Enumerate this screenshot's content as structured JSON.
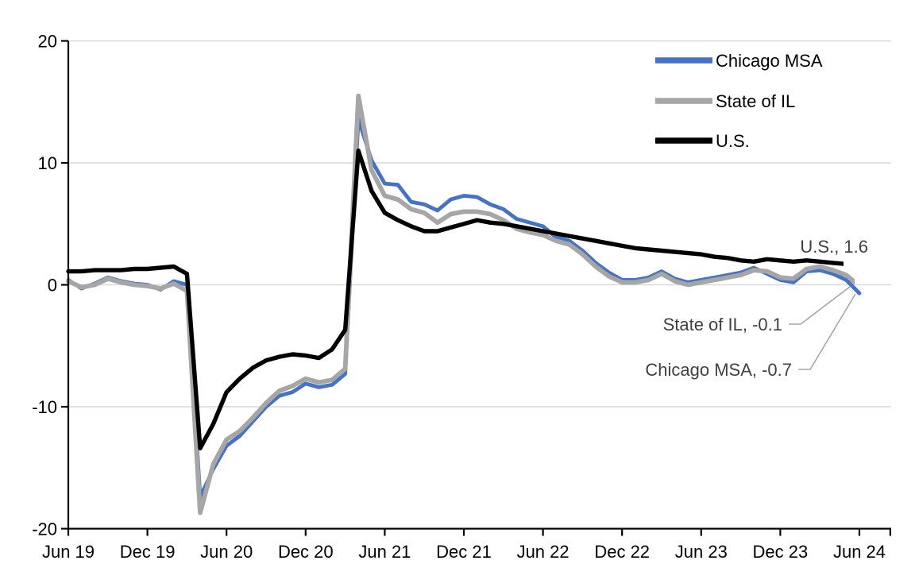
{
  "chart_data": {
    "type": "line",
    "title": "",
    "frequency": "monthly",
    "x_range": [
      "Jun 2019",
      "Jun 2024"
    ],
    "x_tick_labels": [
      "Jun 19",
      "Dec 19",
      "Jun 20",
      "Dec 20",
      "Jun 21",
      "Dec 21",
      "Jun 22",
      "Dec 22",
      "Jun 23",
      "Dec 23",
      "Jun 24"
    ],
    "y_ticks": [
      20,
      10,
      0,
      -10,
      -20
    ],
    "ylim": [
      -20,
      20
    ],
    "grid": "horizontal",
    "legend_position": "top-right",
    "series": [
      {
        "name": "Chicago MSA",
        "color": "#4472C4",
        "final_value": -0.7,
        "values": [
          0.4,
          -0.3,
          0.1,
          0.6,
          0.3,
          0.1,
          0.0,
          -0.4,
          0.3,
          0.0,
          -17.4,
          -15.1,
          -13.2,
          -12.4,
          -11.2,
          -10.0,
          -9.1,
          -8.8,
          -8.1,
          -8.4,
          -8.2,
          -7.3,
          13.6,
          10.2,
          8.3,
          8.2,
          6.8,
          6.6,
          6.1,
          7.0,
          7.3,
          7.2,
          6.6,
          6.2,
          5.4,
          5.1,
          4.8,
          3.9,
          3.6,
          2.8,
          1.8,
          1.0,
          0.4,
          0.4,
          0.6,
          1.1,
          0.5,
          0.2,
          0.4,
          0.6,
          0.8,
          1.0,
          1.4,
          0.9,
          0.4,
          0.2,
          1.1,
          1.2,
          0.9,
          0.4,
          -0.7
        ]
      },
      {
        "name": "State of IL",
        "color": "#A6A6A6",
        "final_value": -0.1,
        "values": [
          0.3,
          -0.2,
          0.0,
          0.5,
          0.2,
          0.0,
          -0.1,
          -0.3,
          0.1,
          -0.5,
          -18.7,
          -14.7,
          -12.7,
          -12.0,
          -10.9,
          -9.7,
          -8.7,
          -8.3,
          -7.7,
          -8.0,
          -7.8,
          -6.9,
          15.5,
          9.4,
          7.3,
          7.0,
          6.2,
          5.9,
          5.1,
          5.8,
          6.0,
          6.0,
          5.8,
          5.3,
          4.6,
          4.3,
          4.1,
          3.6,
          3.3,
          2.5,
          1.5,
          0.7,
          0.2,
          0.2,
          0.4,
          0.9,
          0.3,
          0.0,
          0.2,
          0.4,
          0.6,
          0.8,
          1.2,
          1.1,
          0.6,
          0.5,
          1.3,
          1.5,
          1.2,
          0.8,
          -0.1
        ]
      },
      {
        "name": "U.S.",
        "color": "#000000",
        "final_value": 1.6,
        "values": [
          1.1,
          1.1,
          1.2,
          1.2,
          1.2,
          1.3,
          1.3,
          1.4,
          1.5,
          0.9,
          -13.4,
          -11.4,
          -8.8,
          -7.7,
          -6.8,
          -6.2,
          -5.9,
          -5.7,
          -5.8,
          -6.0,
          -5.3,
          -3.7,
          11.0,
          7.7,
          5.9,
          5.3,
          4.8,
          4.4,
          4.4,
          4.7,
          5.0,
          5.3,
          5.1,
          5.0,
          4.8,
          4.6,
          4.4,
          4.2,
          4.0,
          3.8,
          3.6,
          3.4,
          3.2,
          3.0,
          2.9,
          2.8,
          2.7,
          2.6,
          2.5,
          2.3,
          2.2,
          2.0,
          1.9,
          2.1,
          2.0,
          1.9,
          2.0,
          1.9,
          1.8,
          1.7,
          1.6
        ]
      }
    ],
    "annotations": [
      {
        "text": "U.S., 1.6"
      },
      {
        "text": "State of IL, -0.1"
      },
      {
        "text": "Chicago MSA, -0.7"
      }
    ]
  },
  "colors": {
    "background": "#FFFFFF",
    "gridline": "#D9D9D9",
    "axis": "#000000",
    "annotation_text": "#404040",
    "leader_line": "#A6A6A6",
    "chicago_msa": "#4472C4",
    "state_of_il": "#A6A6A6",
    "us": "#000000"
  }
}
